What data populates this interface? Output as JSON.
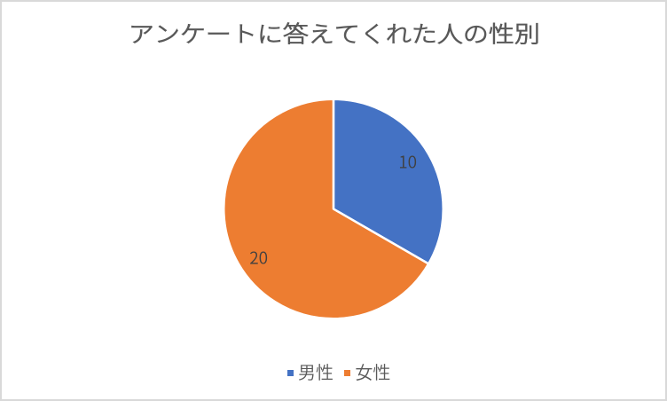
{
  "window": {
    "background_color": "#FFFFFF",
    "border_color": "#D9D9D9"
  },
  "chart_data": {
    "type": "pie",
    "title": "アンケートに答えてくれた人の性別",
    "categories": [
      "男性",
      "女性"
    ],
    "values": [
      10,
      20
    ],
    "total": 30,
    "data_labels": [
      "10",
      "20"
    ],
    "slice_colors": [
      "#4472C4",
      "#ED7D31"
    ],
    "start_angle_deg": 0,
    "direction": "clockwise",
    "separator_color": "#FFFFFF",
    "title_color": "#595959",
    "data_label_color": "#404040",
    "legend": {
      "position": "bottom",
      "text_color": "#595959",
      "items": [
        {
          "label": "男性",
          "color": "#4472C4"
        },
        {
          "label": "女性",
          "color": "#ED7D31"
        }
      ]
    }
  }
}
